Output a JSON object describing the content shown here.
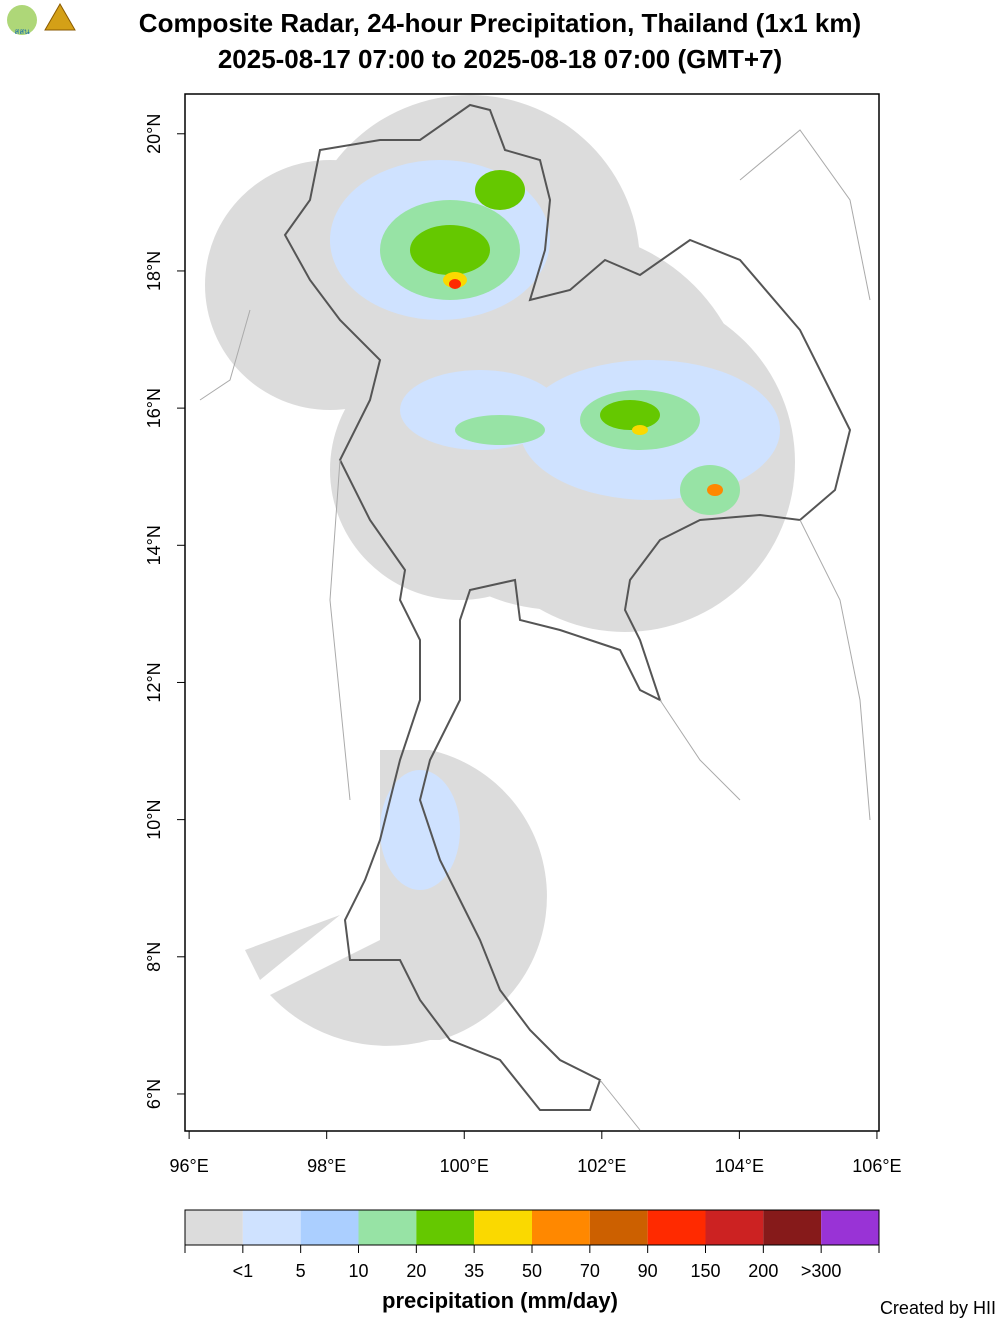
{
  "header": {
    "logo_text": "สสน",
    "title": "Composite Radar, 24-hour Precipitation, Thailand (1x1 km)",
    "subtitle": "2025-08-17 07:00 to 2025-08-18 07:00 (GMT+7)"
  },
  "map": {
    "xlim": [
      95.94,
      106.03
    ],
    "ylim": [
      5.46,
      20.58
    ],
    "xticks": [
      {
        "value": 96,
        "label": "96°E"
      },
      {
        "value": 98,
        "label": "98°E"
      },
      {
        "value": 100,
        "label": "100°E"
      },
      {
        "value": 102,
        "label": "102°E"
      },
      {
        "value": 104,
        "label": "104°E"
      },
      {
        "value": 106,
        "label": "106°E"
      }
    ],
    "yticks": [
      {
        "value": 6,
        "label": "6°N"
      },
      {
        "value": 8,
        "label": "8°N"
      },
      {
        "value": 10,
        "label": "10°N"
      },
      {
        "value": 12,
        "label": "12°N"
      },
      {
        "value": 14,
        "label": "14°N"
      },
      {
        "value": 16,
        "label": "16°N"
      },
      {
        "value": 18,
        "label": "18°N"
      },
      {
        "value": 20,
        "label": "20°N"
      }
    ]
  },
  "legend": {
    "title": "precipitation (mm/day)",
    "colors": [
      "#dcdcdc",
      "#cfe2ff",
      "#abcfff",
      "#97e3a5",
      "#65c800",
      "#fad900",
      "#ff8800",
      "#cc6000",
      "#ff2a00",
      "#cc2222",
      "#861a1a",
      "#9933d6"
    ],
    "labels": [
      "<1",
      "5",
      "10",
      "20",
      "35",
      "50",
      "70",
      "90",
      "150",
      "200",
      ">300"
    ]
  },
  "footer": {
    "credit": "Created by HII"
  }
}
